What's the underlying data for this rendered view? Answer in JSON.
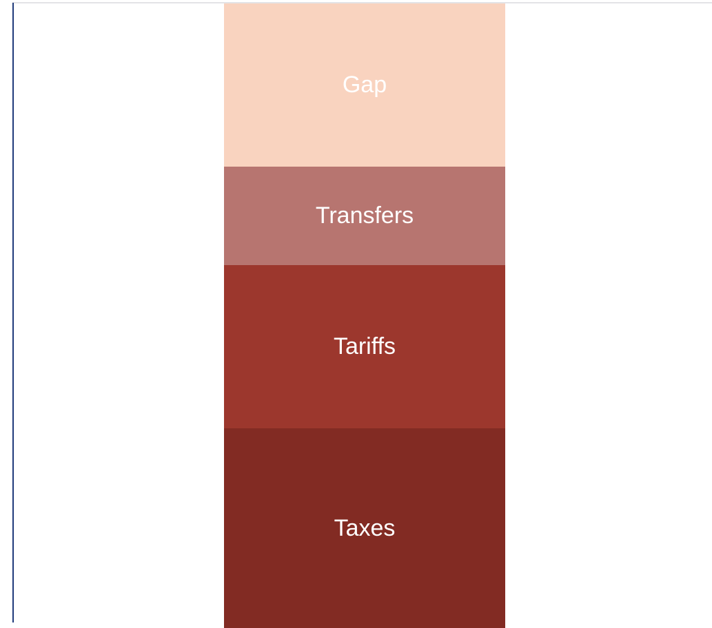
{
  "segments": [
    {
      "label": "Gap",
      "color": "#f9d3bf"
    },
    {
      "label": "Transfers",
      "color": "#b77570"
    },
    {
      "label": "Tariffs",
      "color": "#9c372d"
    },
    {
      "label": "Taxes",
      "color": "#822b23"
    }
  ]
}
